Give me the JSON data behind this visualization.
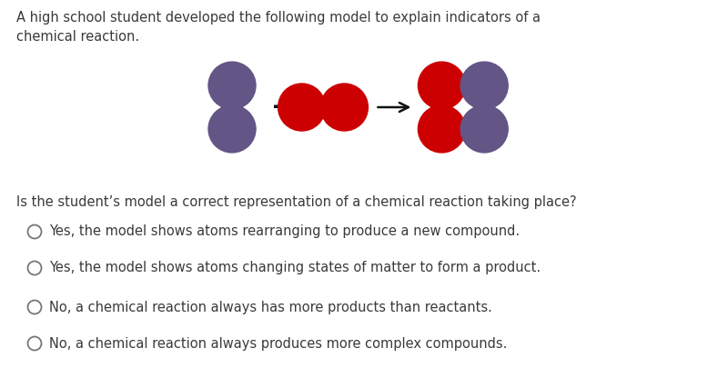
{
  "title_text": "A high school student developed the following model to explain indicators of a\nchemical reaction.",
  "question_text": "Is the student’s model a correct representation of a chemical reaction taking place?",
  "options": [
    "Yes, the model shows atoms rearranging to produce a new compound.",
    "Yes, the model shows atoms changing states of matter to form a product.",
    "No, a chemical reaction always has more products than reactants.",
    "No, a chemical reaction always produces more complex compounds."
  ],
  "purple_color": "#635585",
  "red_color": "#CC0000",
  "bg_color": "#FFFFFF",
  "text_color": "#3a3a3a",
  "font_size_title": 10.5,
  "font_size_question": 10.5,
  "font_size_options": 10.5,
  "fig_width": 8.0,
  "fig_height": 4.05,
  "dpi": 100
}
